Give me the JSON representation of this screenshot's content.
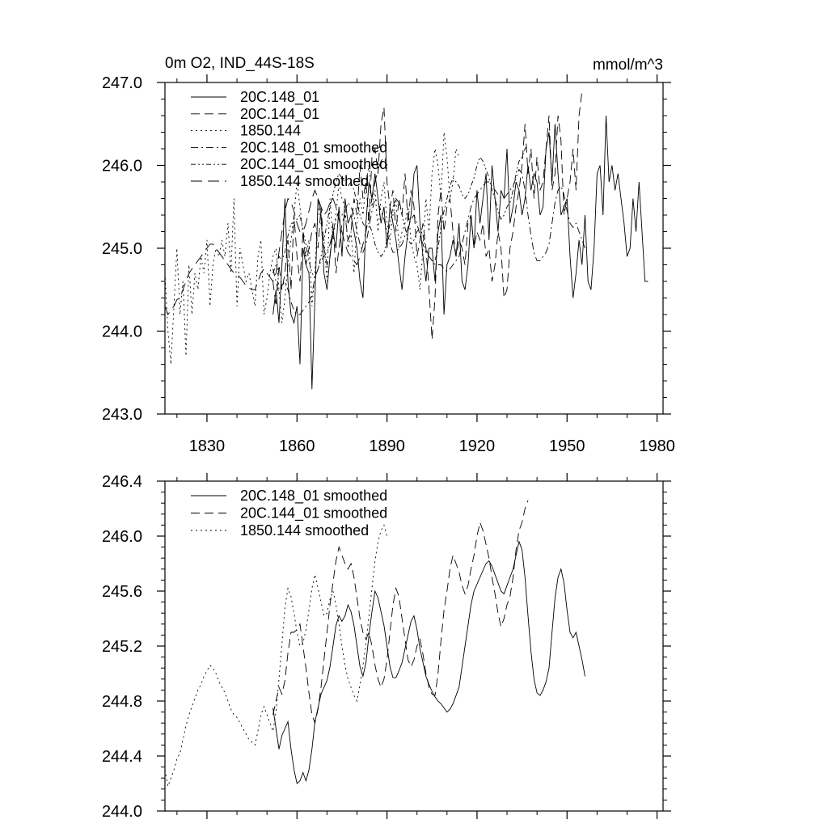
{
  "chart_data": [
    {
      "type": "line",
      "title": "0m O2, IND_44S-18S",
      "units": "mmol/m^3",
      "xlim": [
        1816,
        1982
      ],
      "ylim": [
        243.0,
        247.0
      ],
      "x_major_ticks": [
        1830,
        1860,
        1890,
        1920,
        1950,
        1980
      ],
      "x_minor_step": 10,
      "y_major_ticks": [
        243.0,
        244.0,
        245.0,
        246.0,
        247.0
      ],
      "y_minor_step": 0.2,
      "x_tick_labels": [
        "1830",
        "1860",
        "1890",
        "1920",
        "1950",
        "1980"
      ],
      "y_tick_labels": [
        "243.0",
        "244.0",
        "245.0",
        "246.0",
        "247.0"
      ],
      "legend_position": "top-left",
      "series": [
        {
          "name": "20C.148_01",
          "style": "solid",
          "x0": 1852,
          "values": [
            244.2,
            244.5,
            244.1,
            244.8,
            245.6,
            244.6,
            244.2,
            244.1,
            244.3,
            243.6,
            245.0,
            244.8,
            244.7,
            243.3,
            244.4,
            245.6,
            245.4,
            244.7,
            244.5,
            244.9,
            245.2,
            245.0,
            245.5,
            244.9,
            245.6,
            245.3,
            245.4,
            245.2,
            245.0,
            244.6,
            244.4,
            245.3,
            245.8,
            245.6,
            245.9,
            245.6,
            245.3,
            245.5,
            245.0,
            245.5,
            245.3,
            245.1,
            244.8,
            244.5,
            244.9,
            245.2,
            245.4,
            245.9,
            246.0,
            245.3,
            244.9,
            244.6,
            245.0,
            245.0,
            244.6,
            245.2,
            245.4,
            244.2,
            244.8,
            244.9,
            245.1,
            244.9,
            245.3,
            244.6,
            244.5,
            244.8,
            245.4,
            245.0,
            245.7,
            245.3,
            245.6,
            245.9,
            245.1,
            246.0,
            245.6,
            245.2,
            245.7,
            245.6,
            246.2,
            245.3,
            245.5,
            245.8,
            245.7,
            245.4,
            245.6,
            246.0,
            245.7,
            245.9,
            245.8,
            245.4,
            245.5,
            246.2,
            246.4,
            245.8,
            246.5,
            245.9,
            245.4,
            245.5,
            245.6,
            244.9,
            244.4,
            244.7,
            245.1,
            244.8,
            245.4,
            244.6,
            244.5,
            245.0,
            245.9,
            246.0,
            245.4,
            246.6,
            245.8,
            246.0,
            245.7,
            245.9,
            245.6,
            245.3,
            244.9,
            245.0,
            245.6,
            245.2,
            245.8,
            245.2,
            244.6,
            244.6
          ]
        },
        {
          "name": "20C.144_01",
          "style": "dashed",
          "x0": 1852,
          "values": [
            244.6,
            244.3,
            244.8,
            244.5,
            244.7,
            245.1,
            244.5,
            245.4,
            244.9,
            244.6,
            245.2,
            244.8,
            245.0,
            245.2,
            245.3,
            245.0,
            245.5,
            245.0,
            244.8,
            244.9,
            245.3,
            244.7,
            245.0,
            245.3,
            245.4,
            245.1,
            245.2,
            245.6,
            245.4,
            246.0,
            245.6,
            245.8,
            245.3,
            246.1,
            246.2,
            245.9,
            246.5,
            246.7,
            245.8,
            245.5,
            245.7,
            245.2,
            245.6,
            245.4,
            245.9,
            245.3,
            245.7,
            245.5,
            244.9,
            245.1,
            245.3,
            245.0,
            244.5,
            243.9,
            244.4,
            245.4,
            245.7,
            245.2,
            245.5,
            245.6,
            245.2,
            244.9,
            245.1,
            245.0,
            244.8,
            245.3,
            245.4,
            245.0,
            245.2,
            245.1,
            245.3,
            244.9,
            245.0,
            244.6,
            244.8,
            245.2,
            245.0,
            244.4,
            244.5,
            245.0,
            245.2,
            245.5,
            245.7,
            246.0,
            246.5,
            245.9,
            246.2,
            245.6,
            246.1,
            245.7,
            245.8,
            246.2,
            246.6,
            245.7,
            245.9,
            246.6,
            246.3,
            245.4,
            245.6,
            245.8,
            246.2,
            245.7,
            246.6,
            246.9
          ]
        },
        {
          "name": "1850.144",
          "style": "dotted",
          "x0": 1816,
          "values": [
            244.7,
            244.0,
            243.6,
            244.3,
            245.0,
            244.2,
            244.6,
            243.7,
            244.8,
            244.2,
            244.7,
            244.5,
            244.9,
            244.7,
            245.1,
            244.3,
            244.8,
            245.0,
            244.9,
            245.1,
            244.9,
            245.3,
            244.7,
            245.6,
            244.3,
            245.0,
            244.8,
            244.6,
            244.7,
            244.5,
            244.3,
            244.9,
            245.1,
            244.2,
            244.4,
            244.7,
            244.9,
            245.0,
            244.5,
            244.1,
            244.4,
            244.8,
            245.1,
            245.4,
            245.8,
            245.5,
            245.2,
            244.9,
            245.1,
            244.3,
            244.7,
            245.5,
            245.3,
            245.1,
            244.6,
            245.6,
            245.1,
            245.4,
            245.8,
            245.6,
            245.5,
            245.0,
            245.2,
            244.7,
            245.3,
            245.6,
            245.4,
            245.8,
            246.0,
            245.5,
            245.7,
            245.2,
            245.6,
            245.8,
            245.3,
            245.1,
            245.4,
            245.6,
            245.0,
            245.2,
            245.3,
            245.5,
            245.1,
            244.9,
            244.8,
            244.5,
            245.0,
            245.6,
            245.2,
            245.9,
            246.2,
            246.0,
            245.6,
            246.4,
            246.1,
            245.6,
            245.8,
            246.2,
            246.1
          ]
        },
        {
          "name": "20C.148_01 smoothed",
          "style": "dashdot",
          "x0": 1852,
          "values": [
            244.75,
            244.6,
            244.45,
            244.55,
            244.6,
            244.5,
            244.35,
            244.25,
            244.2,
            244.2,
            244.25,
            244.3,
            244.35,
            244.45,
            244.65,
            244.75,
            244.85,
            244.9,
            244.95,
            245.05,
            245.2,
            245.35,
            245.45,
            245.4,
            245.45,
            245.55,
            245.5,
            245.4,
            245.2,
            245.05,
            244.95,
            245.05,
            245.25,
            245.45,
            245.6,
            245.55,
            245.45,
            245.35,
            245.2,
            245.05,
            244.95,
            244.95,
            245.0,
            245.05,
            245.15,
            245.25,
            245.35,
            245.4,
            245.3,
            245.15,
            245.05,
            244.95,
            244.9,
            244.85,
            244.8,
            244.8,
            244.8,
            244.75,
            244.72,
            244.75,
            244.8,
            244.85,
            244.9,
            245.05,
            245.2,
            245.35,
            245.5,
            245.6,
            245.65,
            245.7,
            245.75,
            245.8,
            245.8,
            245.75,
            245.7,
            245.65,
            245.6,
            245.6,
            245.65,
            245.7,
            245.75,
            245.85,
            245.95,
            245.9,
            245.7,
            245.4,
            245.15,
            244.95,
            244.85,
            244.85,
            244.9,
            244.95,
            245.05,
            245.3,
            245.55,
            245.7,
            245.75,
            245.65,
            245.45,
            245.3,
            245.25,
            245.3,
            245.2,
            245.1,
            245.0
          ]
        },
        {
          "name": "20C.144_01 smoothed",
          "style": "dashdot2",
          "x0": 1852,
          "values": [
            244.7,
            244.8,
            244.9,
            244.85,
            244.95,
            245.15,
            245.3,
            245.3,
            245.35,
            245.4,
            245.2,
            245.05,
            244.85,
            244.7,
            244.65,
            244.75,
            244.9,
            245.1,
            245.3,
            245.5,
            245.65,
            245.8,
            245.9,
            245.85,
            245.8,
            245.75,
            245.8,
            245.7,
            245.55,
            245.4,
            245.3,
            245.25,
            245.3,
            245.2,
            245.05,
            244.95,
            244.9,
            244.95,
            245.1,
            245.3,
            245.5,
            245.6,
            245.55,
            245.4,
            245.25,
            245.1,
            245.05,
            245.1,
            245.2,
            245.25,
            245.15,
            245.0,
            244.9,
            244.85,
            244.85,
            245.0,
            245.25,
            245.45,
            245.6,
            245.75,
            245.85,
            245.8,
            245.75,
            245.65,
            245.6,
            245.65,
            245.75,
            245.85,
            246.0,
            246.1,
            246.05,
            245.95,
            245.85,
            245.7,
            245.6,
            245.45,
            245.35,
            245.4,
            245.5,
            245.55,
            245.7,
            245.9,
            246.05,
            246.1,
            246.2,
            246.25
          ]
        },
        {
          "name": "1850.144 smoothed",
          "style": "longdash",
          "x0": 1816,
          "values": [
            244.3,
            244.2,
            244.25,
            244.3,
            244.38,
            244.4,
            244.5,
            244.6,
            244.7,
            244.75,
            244.8,
            244.85,
            244.9,
            244.95,
            245.0,
            245.05,
            245.05,
            245.0,
            244.95,
            244.9,
            244.85,
            244.8,
            244.75,
            244.7,
            244.68,
            244.65,
            244.6,
            244.55,
            244.52,
            244.5,
            244.5,
            244.6,
            244.7,
            244.75,
            244.7,
            244.65,
            244.6,
            244.7,
            244.95,
            245.2,
            245.45,
            245.6,
            245.55,
            245.45,
            245.3,
            245.2,
            245.2,
            245.3,
            245.45,
            245.6,
            245.7,
            245.6,
            245.5,
            245.4,
            245.45,
            245.55,
            245.6,
            245.5,
            245.35,
            245.2,
            245.05,
            244.95,
            244.9,
            244.85,
            244.8,
            244.9,
            245.05,
            245.2,
            245.4,
            245.6,
            245.8,
            245.95,
            246.05,
            246.1,
            246.0
          ]
        }
      ]
    },
    {
      "type": "line",
      "title": "",
      "xlim": [
        1816,
        1982
      ],
      "ylim": [
        244.0,
        246.4
      ],
      "x_major_ticks": [
        1830,
        1860,
        1890,
        1920,
        1950,
        1980
      ],
      "x_minor_step": 10,
      "y_major_ticks": [
        244.0,
        244.4,
        244.8,
        245.2,
        245.6,
        246.0,
        246.4
      ],
      "y_minor_step": 0.08,
      "y_tick_labels": [
        "244.0",
        "244.4",
        "244.8",
        "245.2",
        "245.6",
        "246.0",
        "246.4"
      ],
      "legend_position": "top-left",
      "series": [
        {
          "name": "20C.148_01 smoothed",
          "style": "solid",
          "x0": 1852,
          "values": [
            244.75,
            244.6,
            244.45,
            244.55,
            244.6,
            244.65,
            244.45,
            244.3,
            244.2,
            244.22,
            244.28,
            244.22,
            244.3,
            244.45,
            244.65,
            244.75,
            244.85,
            244.9,
            244.95,
            245.05,
            245.2,
            245.35,
            245.42,
            245.38,
            245.42,
            245.5,
            245.45,
            245.35,
            245.2,
            245.05,
            244.98,
            245.08,
            245.28,
            245.45,
            245.6,
            245.55,
            245.45,
            245.35,
            245.2,
            245.05,
            244.97,
            244.97,
            245.02,
            245.08,
            245.18,
            245.28,
            245.38,
            245.42,
            245.32,
            245.18,
            245.08,
            244.98,
            244.92,
            244.87,
            244.83,
            244.8,
            244.78,
            244.75,
            244.72,
            244.74,
            244.78,
            244.84,
            244.9,
            245.05,
            245.2,
            245.35,
            245.5,
            245.6,
            245.65,
            245.7,
            245.75,
            245.8,
            245.82,
            245.78,
            245.72,
            245.66,
            245.6,
            245.58,
            245.64,
            245.7,
            245.76,
            245.86,
            245.96,
            245.9,
            245.7,
            245.42,
            245.16,
            244.96,
            244.86,
            244.84,
            244.88,
            244.94,
            245.04,
            245.3,
            245.55,
            245.7,
            245.76,
            245.66,
            245.46,
            245.3,
            245.26,
            245.3,
            245.2,
            245.1,
            244.98
          ]
        },
        {
          "name": "20C.144_01 smoothed",
          "style": "dashed",
          "x0": 1852,
          "values": [
            244.7,
            244.8,
            244.9,
            244.85,
            244.95,
            245.15,
            245.3,
            245.3,
            245.32,
            245.36,
            245.2,
            245.04,
            244.86,
            244.7,
            244.64,
            244.74,
            244.9,
            245.1,
            245.3,
            245.5,
            245.66,
            245.82,
            245.92,
            245.86,
            245.8,
            245.76,
            245.8,
            245.7,
            245.55,
            245.4,
            245.3,
            245.25,
            245.3,
            245.2,
            245.06,
            244.96,
            244.9,
            244.96,
            245.1,
            245.3,
            245.5,
            245.62,
            245.56,
            245.4,
            245.25,
            245.1,
            245.05,
            245.1,
            245.2,
            245.25,
            245.14,
            245.0,
            244.9,
            244.85,
            244.84,
            245.0,
            245.24,
            245.46,
            245.6,
            245.76,
            245.86,
            245.8,
            245.74,
            245.64,
            245.58,
            245.64,
            245.76,
            245.86,
            246.0,
            246.1,
            246.04,
            245.94,
            245.84,
            245.7,
            245.58,
            245.44,
            245.34,
            245.4,
            245.5,
            245.56,
            245.7,
            245.9,
            246.04,
            246.1,
            246.2,
            246.26
          ]
        },
        {
          "name": "1850.144 smoothed",
          "style": "dotted",
          "x0": 1816,
          "values": [
            244.3,
            244.18,
            244.24,
            244.3,
            244.38,
            244.42,
            244.52,
            244.62,
            244.7,
            244.76,
            244.82,
            244.88,
            244.92,
            244.98,
            245.02,
            245.06,
            245.04,
            245.0,
            244.94,
            244.9,
            244.86,
            244.8,
            244.74,
            244.7,
            244.68,
            244.64,
            244.6,
            244.56,
            244.52,
            244.5,
            244.48,
            244.58,
            244.7,
            244.76,
            244.7,
            244.64,
            244.58,
            244.72,
            244.96,
            245.22,
            245.48,
            245.62,
            245.56,
            245.44,
            245.3,
            245.2,
            245.22,
            245.32,
            245.46,
            245.62,
            245.72,
            245.62,
            245.52,
            245.42,
            245.44,
            245.54,
            245.6,
            245.5,
            245.36,
            245.2,
            245.06,
            244.96,
            244.9,
            244.84,
            244.8,
            244.92,
            245.06,
            245.22,
            245.42,
            245.62,
            245.82,
            245.96,
            246.04,
            246.08,
            246.0
          ]
        }
      ]
    }
  ]
}
